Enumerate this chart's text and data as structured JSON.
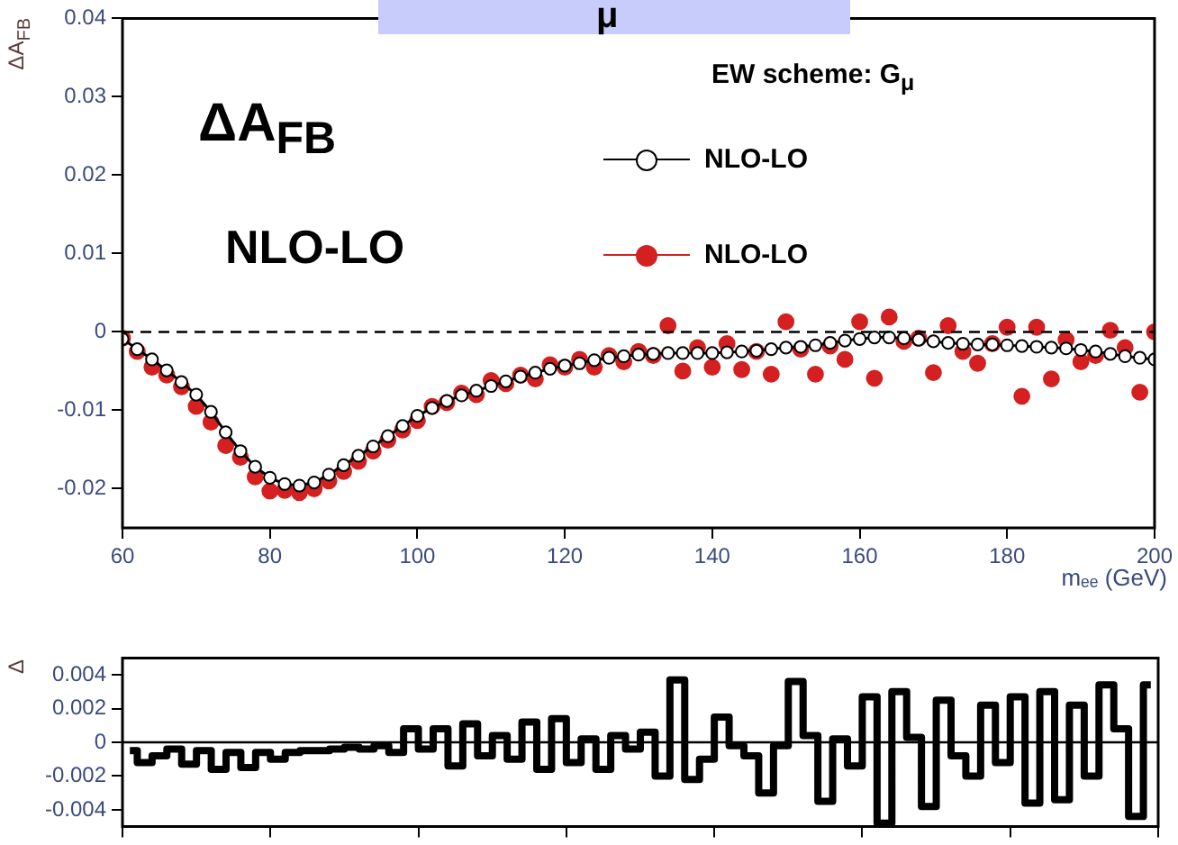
{
  "chart_data": [
    {
      "type": "line",
      "ylabel": "ΔA$_{FB}$",
      "xlabel": "mₑₑ (GeV)",
      "annotations": [
        "μ",
        "EW scheme: G$_{μ}$",
        "ΔA$_{FB}$",
        "NLO-LO"
      ],
      "xlim": [
        60,
        200
      ],
      "xticks": [
        60,
        80,
        100,
        120,
        140,
        160,
        180,
        200
      ],
      "ylim": [
        -0.025,
        0.04
      ],
      "yticks": [
        -0.02,
        -0.01,
        0,
        0.01,
        0.02,
        0.03,
        0.04
      ],
      "grid": false,
      "legend": "top right",
      "marker": "circle",
      "ref_lines": [
        {
          "axis": "y",
          "value": 0,
          "line_style": "dashed",
          "color": "#000000"
        }
      ],
      "series": [
        {
          "name": "NLO-LO",
          "color": "#000000",
          "type": "line",
          "x": [
            60,
            62,
            64,
            66,
            68,
            70,
            72,
            74,
            76,
            78,
            80,
            82,
            84,
            86,
            88,
            90,
            92,
            94,
            96,
            98,
            100,
            102,
            104,
            106,
            108,
            110,
            112,
            114,
            116,
            118,
            120,
            122,
            124,
            126,
            128,
            130,
            132,
            134,
            136,
            138,
            140,
            142,
            144,
            146,
            148,
            150,
            152,
            154,
            156,
            158,
            160,
            162,
            164,
            166,
            168,
            170,
            172,
            174,
            176,
            178,
            180,
            182,
            184,
            186,
            188,
            190,
            192,
            194,
            196,
            198,
            200
          ],
          "values": [
            -0.0009,
            -0.0022,
            -0.0035,
            -0.0049,
            -0.0064,
            -0.008,
            -0.0102,
            -0.0128,
            -0.0152,
            -0.0172,
            -0.0186,
            -0.0194,
            -0.0196,
            -0.0192,
            -0.0182,
            -0.017,
            -0.0158,
            -0.0146,
            -0.0133,
            -0.012,
            -0.0107,
            -0.0097,
            -0.0088,
            -0.0081,
            -0.0075,
            -0.0069,
            -0.0063,
            -0.0057,
            -0.0052,
            -0.0047,
            -0.0043,
            -0.004,
            -0.0036,
            -0.0033,
            -0.0031,
            -0.0029,
            -0.0028,
            -0.0027,
            -0.0027,
            -0.0027,
            -0.0027,
            -0.0026,
            -0.0025,
            -0.0024,
            -0.0022,
            -0.002,
            -0.0019,
            -0.0017,
            -0.0014,
            -0.0011,
            -0.0009,
            -0.0007,
            -0.0007,
            -0.0008,
            -0.001,
            -0.0012,
            -0.0014,
            -0.0015,
            -0.0016,
            -0.0016,
            -0.0017,
            -0.0018,
            -0.0019,
            -0.002,
            -0.0021,
            -0.0023,
            -0.0025,
            -0.0028,
            -0.0031,
            -0.0033,
            -0.0035
          ]
        },
        {
          "name": "NLO-LO",
          "color": "#d42020",
          "type": "scatter",
          "x": [
            60,
            62,
            64,
            66,
            68,
            70,
            72,
            74,
            76,
            78,
            80,
            82,
            84,
            86,
            88,
            90,
            92,
            94,
            96,
            98,
            100,
            102,
            104,
            106,
            108,
            110,
            112,
            114,
            116,
            118,
            120,
            122,
            124,
            126,
            128,
            130,
            132,
            134,
            136,
            138,
            140,
            142,
            144,
            146,
            148,
            150,
            152,
            154,
            156,
            158,
            160,
            162,
            164,
            166,
            168,
            170,
            172,
            174,
            176,
            178,
            180,
            182,
            184,
            186,
            188,
            190,
            192,
            194,
            196,
            198,
            200
          ],
          "values": [
            -0.0008,
            -0.0025,
            -0.0045,
            -0.0055,
            -0.007,
            -0.0095,
            -0.0115,
            -0.0145,
            -0.016,
            -0.0185,
            -0.0203,
            -0.0202,
            -0.0205,
            -0.02,
            -0.019,
            -0.0178,
            -0.0165,
            -0.0152,
            -0.0138,
            -0.0125,
            -0.0113,
            -0.0095,
            -0.009,
            -0.0078,
            -0.008,
            -0.0062,
            -0.0066,
            -0.0055,
            -0.006,
            -0.0042,
            -0.0045,
            -0.0035,
            -0.0045,
            -0.003,
            -0.0038,
            -0.0025,
            -0.003,
            0.0008,
            -0.005,
            -0.002,
            -0.0045,
            -0.0015,
            -0.0048,
            -0.0025,
            -0.0054,
            0.0013,
            -0.0022,
            -0.0054,
            -0.0018,
            -0.0035,
            0.0013,
            -0.0059,
            0.0019,
            -0.0012,
            -0.0008,
            -0.0052,
            0.0008,
            -0.0025,
            -0.004,
            -0.0015,
            0.0006,
            -0.0082,
            0.0006,
            -0.006,
            -0.001,
            -0.0038,
            -0.003,
            0.0002,
            -0.002,
            -0.0077,
            0
          ]
        }
      ]
    },
    {
      "type": "step",
      "ylabel": "Δ",
      "tick_labels": "y",
      "grid": false,
      "marker": "none",
      "xlim": [
        60,
        200
      ],
      "xticks": [
        {
          "value": 60,
          "label": null
        },
        {
          "value": 80,
          "label": null
        },
        {
          "value": 100,
          "label": null
        },
        {
          "value": 120,
          "label": null
        },
        {
          "value": 140,
          "label": null
        },
        {
          "value": 160,
          "label": null
        },
        {
          "value": 180,
          "label": null
        },
        {
          "value": 200,
          "label": null
        }
      ],
      "ylim": [
        -0.005,
        0.005
      ],
      "yticks": [
        -0.004,
        -0.002,
        0,
        0.002,
        0.004
      ],
      "ref_lines": [
        {
          "axis": "y",
          "value": 0,
          "color": "#000000"
        }
      ],
      "series": [
        {
          "color": "#000000",
          "x": [
            61,
            63,
            65,
            67,
            69,
            71,
            73,
            75,
            77,
            79,
            81,
            83,
            85,
            87,
            89,
            91,
            93,
            95,
            97,
            99,
            101,
            103,
            105,
            107,
            109,
            111,
            113,
            115,
            117,
            119,
            121,
            123,
            125,
            127,
            129,
            131,
            133,
            135,
            137,
            139,
            141,
            143,
            145,
            147,
            149,
            151,
            153,
            155,
            157,
            159,
            161,
            163,
            165,
            167,
            169,
            171,
            173,
            175,
            177,
            179,
            181,
            183,
            185,
            187,
            189,
            191,
            193,
            195,
            197,
            199
          ],
          "values": [
            -0.0005,
            -0.0012,
            -0.0008,
            -0.0004,
            -0.0013,
            -0.0005,
            -0.0016,
            -0.0006,
            -0.0015,
            -0.0006,
            -0.001,
            -0.0006,
            -0.0005,
            -0.0005,
            -0.0004,
            -0.0003,
            -0.0004,
            -0.0002,
            -0.0006,
            0.0008,
            -0.0004,
            0.0008,
            -0.0014,
            0.0011,
            -0.0008,
            0.0004,
            -0.001,
            0.0012,
            -0.0016,
            0.0014,
            -0.0012,
            0.0002,
            -0.0016,
            0.0004,
            -0.0004,
            0.0006,
            -0.002,
            0.0037,
            -0.0022,
            -0.001,
            0.0015,
            -0.0002,
            -0.0008,
            -0.003,
            -0.0002,
            0.0036,
            0.0004,
            -0.0035,
            0.0002,
            -0.0014,
            0.0027,
            -0.0048,
            0.003,
            0.0003,
            -0.0038,
            0.0025,
            -0.0008,
            -0.002,
            0.0022,
            -0.0012,
            0.0027,
            -0.0036,
            0.003,
            -0.0034,
            0.0022,
            -0.002,
            0.0034,
            0.0008,
            -0.0044,
            0.0034
          ]
        }
      ]
    }
  ]
}
